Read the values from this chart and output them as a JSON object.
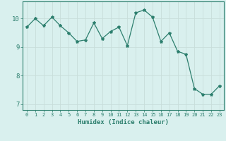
{
  "x": [
    0,
    1,
    2,
    3,
    4,
    5,
    6,
    7,
    8,
    9,
    10,
    11,
    12,
    13,
    14,
    15,
    16,
    17,
    18,
    19,
    20,
    21,
    22,
    23
  ],
  "y": [
    9.7,
    10.0,
    9.75,
    10.05,
    9.75,
    9.5,
    9.2,
    9.25,
    9.85,
    9.3,
    9.55,
    9.7,
    9.05,
    10.2,
    10.3,
    10.05,
    9.2,
    9.5,
    8.85,
    8.75,
    7.55,
    7.35,
    7.35,
    7.65
  ],
  "line_color": "#2d7f6e",
  "marker": "*",
  "marker_size": 3,
  "bg_color": "#d9f0ee",
  "grid_color": "#c8deda",
  "xlabel": "Humidex (Indice chaleur)",
  "xlim": [
    -0.5,
    23.5
  ],
  "ylim": [
    6.8,
    10.6
  ],
  "yticks": [
    7,
    8,
    9,
    10
  ],
  "xticks": [
    0,
    1,
    2,
    3,
    4,
    5,
    6,
    7,
    8,
    9,
    10,
    11,
    12,
    13,
    14,
    15,
    16,
    17,
    18,
    19,
    20,
    21,
    22,
    23
  ],
  "tick_color": "#2d7f6e",
  "label_color": "#2d7f6e",
  "axis_color": "#2d7f6e",
  "xlabel_fontsize": 6.5,
  "xtick_fontsize": 5.0,
  "ytick_fontsize": 6.5
}
